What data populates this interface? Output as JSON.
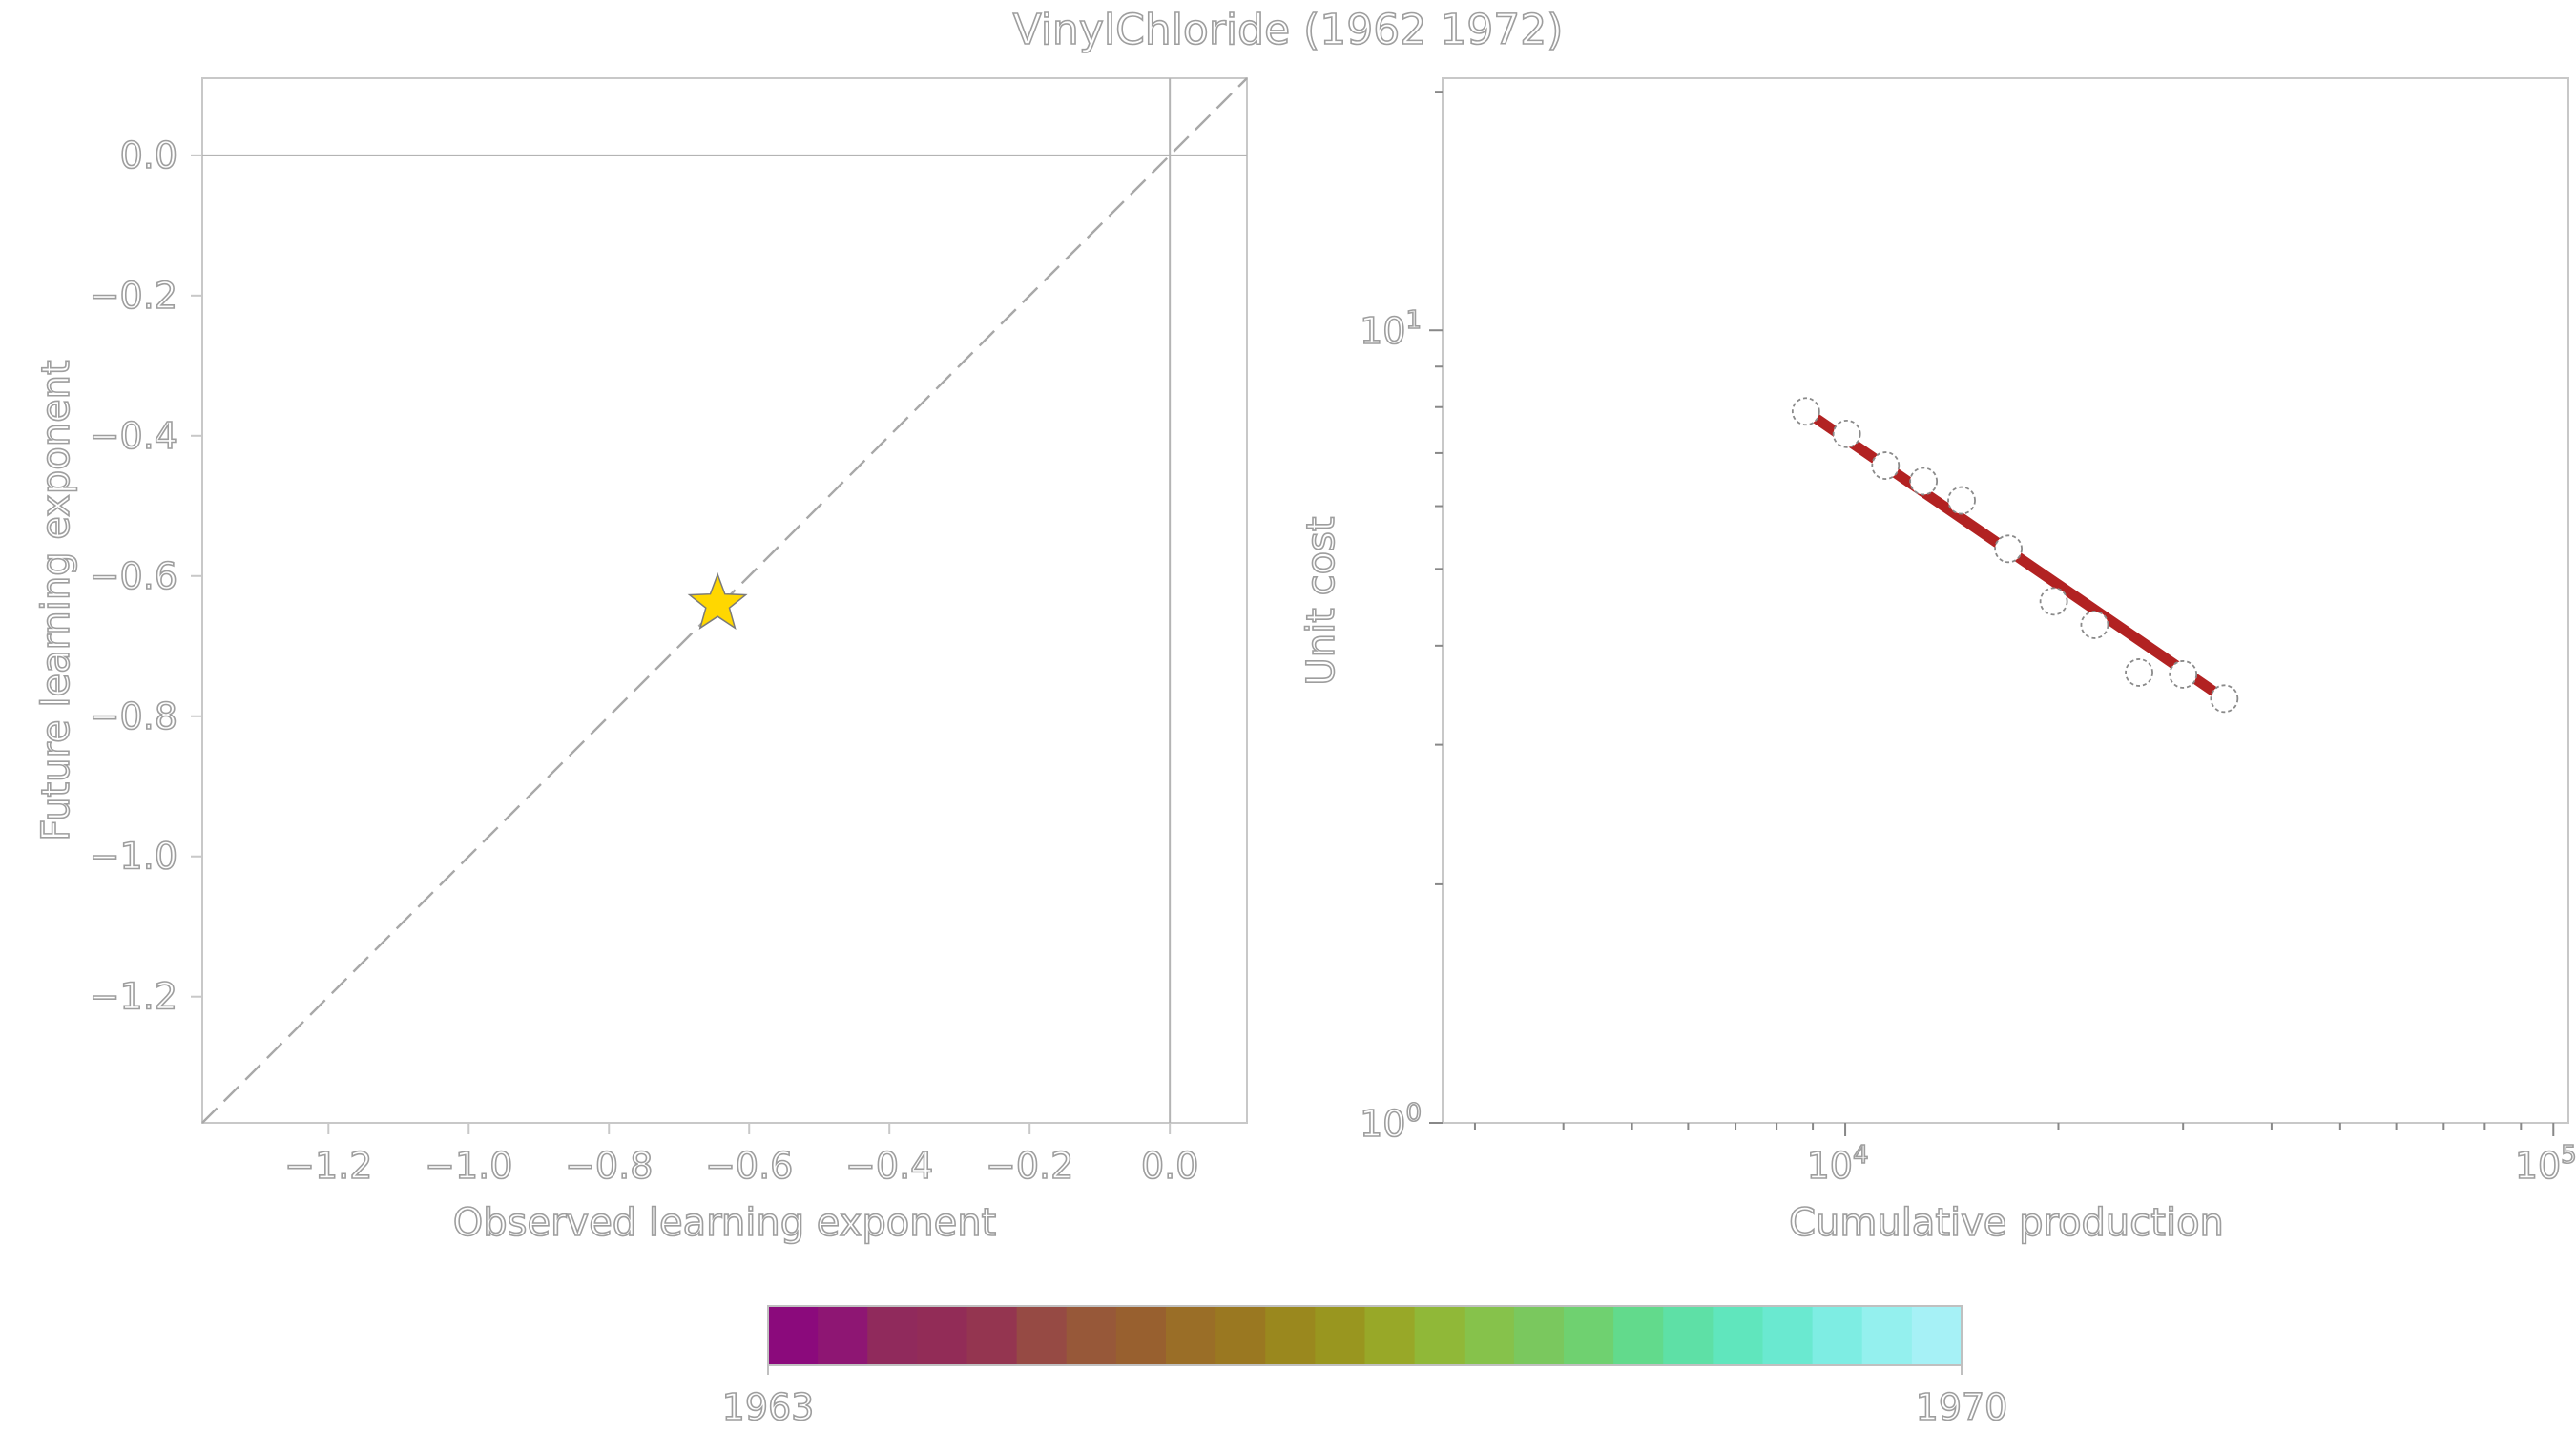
{
  "figure": {
    "title": "VinylChloride (1962 1972)"
  },
  "chart_data": [
    {
      "type": "scatter",
      "panel": "left",
      "xlabel": "Observed learning exponent",
      "ylabel": "Future learning exponent",
      "xlim": [
        -1.38,
        0.11
      ],
      "ylim": [
        -1.38,
        0.11
      ],
      "xticks": [
        {
          "value": -1.2,
          "label": "−1.2"
        },
        {
          "value": -1.0,
          "label": "−1.0"
        },
        {
          "value": -0.8,
          "label": "−0.8"
        },
        {
          "value": -0.6,
          "label": "−0.6"
        },
        {
          "value": -0.4,
          "label": "−0.4"
        },
        {
          "value": -0.2,
          "label": "−0.2"
        },
        {
          "value": 0.0,
          "label": "0.0"
        }
      ],
      "yticks": [
        {
          "value": 0.0,
          "label": "0.0"
        },
        {
          "value": -0.2,
          "label": "−0.2"
        },
        {
          "value": -0.4,
          "label": "−0.4"
        },
        {
          "value": -0.6,
          "label": "−0.6"
        },
        {
          "value": -0.8,
          "label": "−0.8"
        },
        {
          "value": -1.0,
          "label": "−1.0"
        },
        {
          "value": -1.2,
          "label": "−1.2"
        }
      ],
      "reference_lines": [
        "x=0",
        "y=0",
        "y=x (dashed)"
      ],
      "points": [
        {
          "x": -0.645,
          "y": -0.64,
          "marker": "star",
          "color": "#FFD700"
        }
      ],
      "grid": false
    },
    {
      "type": "line",
      "panel": "right",
      "xlabel": "Cumulative production",
      "ylabel": "Unit cost",
      "xscale": "log",
      "yscale": "log",
      "xlim": [
        2700,
        105000
      ],
      "ylim": [
        1.0,
        20.8
      ],
      "xticks": [
        {
          "value": 10000,
          "base": "10",
          "exp": "4"
        },
        {
          "value": 100000,
          "base": "10",
          "exp": "5"
        }
      ],
      "yticks": [
        {
          "value": 1,
          "base": "10",
          "exp": "0"
        },
        {
          "value": 10,
          "base": "10",
          "exp": "1"
        }
      ],
      "points": [
        {
          "x": 8800,
          "y": 7.9
        },
        {
          "x": 10050,
          "y": 7.4
        },
        {
          "x": 11400,
          "y": 6.75
        },
        {
          "x": 12900,
          "y": 6.45
        },
        {
          "x": 14600,
          "y": 6.1
        },
        {
          "x": 17000,
          "y": 5.3
        },
        {
          "x": 19700,
          "y": 4.55
        },
        {
          "x": 22500,
          "y": 4.25
        },
        {
          "x": 26000,
          "y": 3.7
        },
        {
          "x": 30000,
          "y": 3.68
        },
        {
          "x": 34300,
          "y": 3.43
        }
      ],
      "fit_line": {
        "x": [
          8800,
          34300
        ],
        "y": [
          7.9,
          3.43
        ],
        "color": "#B22222"
      },
      "grid": false
    }
  ],
  "colorbar": {
    "label_min": "1963",
    "label_max": "1970",
    "colors": [
      "#8B0A7C",
      "#8E1673",
      "#902A5C",
      "#922C57",
      "#943550",
      "#964A44",
      "#975839",
      "#98602F",
      "#9A6E27",
      "#9A7821",
      "#9A881E",
      "#99961F",
      "#98A828",
      "#90B838",
      "#86C24B",
      "#7AC85E",
      "#6FD170",
      "#62DA8C",
      "#5EE0A6",
      "#60E6BD",
      "#6AE9D0",
      "#7EEDE3",
      "#94F0EE",
      "#A6F1F6"
    ]
  }
}
